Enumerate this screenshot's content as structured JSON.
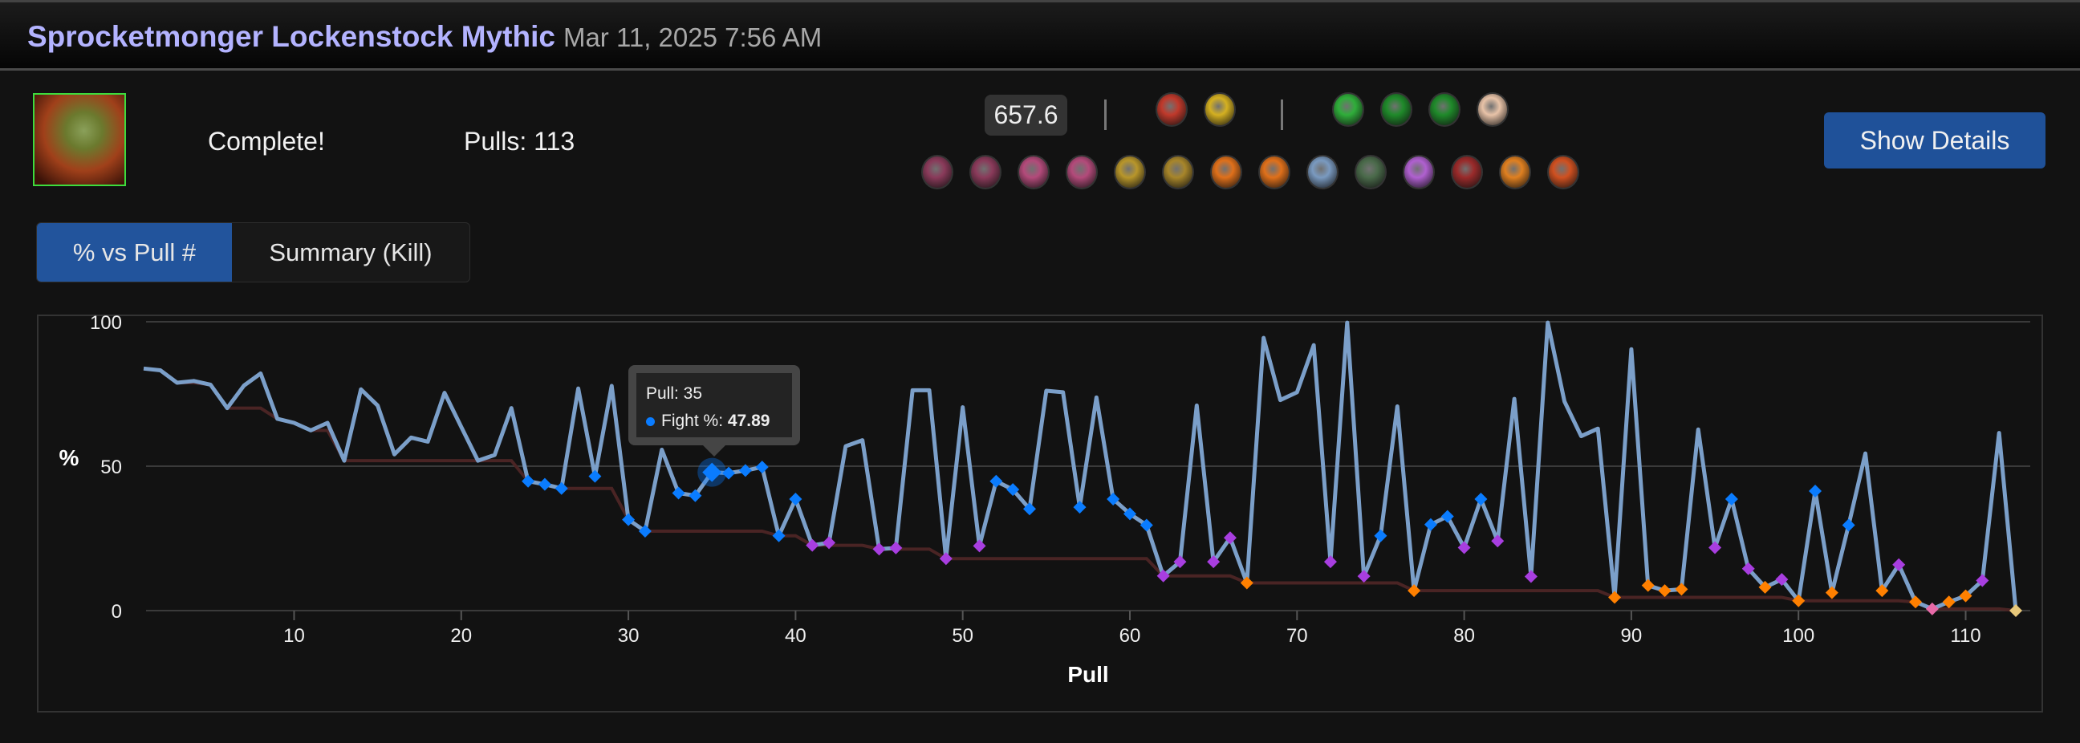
{
  "header": {
    "title": "Sprocketmonger Lockenstock Mythic",
    "date": "Mar 11, 2025 7:56 AM"
  },
  "summary": {
    "status": "Complete!",
    "pulls": "Pulls: 113",
    "score": "657.6"
  },
  "comp_icons_top_left": [
    {
      "name": "tank-icon-1",
      "color": "#c0392b"
    },
    {
      "name": "tank-icon-2",
      "color": "#d4b021"
    }
  ],
  "comp_icons_top_right": [
    {
      "name": "healer-icon-1",
      "color": "#2fae3a"
    },
    {
      "name": "healer-icon-2",
      "color": "#1f8a2a"
    },
    {
      "name": "healer-icon-3",
      "color": "#1f8a2a"
    },
    {
      "name": "healer-icon-4",
      "color": "#e8c3a8"
    }
  ],
  "comp_icons_dps": [
    {
      "name": "dps-icon-1",
      "color": "#8a3a5a"
    },
    {
      "name": "dps-icon-2",
      "color": "#8a3a5a"
    },
    {
      "name": "dps-icon-3",
      "color": "#b34a7a"
    },
    {
      "name": "dps-icon-4",
      "color": "#b34a7a"
    },
    {
      "name": "dps-icon-5",
      "color": "#b8962a"
    },
    {
      "name": "dps-icon-6",
      "color": "#a8862a"
    },
    {
      "name": "dps-icon-7",
      "color": "#e0701a"
    },
    {
      "name": "dps-icon-8",
      "color": "#e0701a"
    },
    {
      "name": "dps-icon-9",
      "color": "#7a9ac0"
    },
    {
      "name": "dps-icon-10",
      "color": "#4a6a4a"
    },
    {
      "name": "dps-icon-11",
      "color": "#b060d0"
    },
    {
      "name": "dps-icon-12",
      "color": "#9a2a2a"
    },
    {
      "name": "dps-icon-13",
      "color": "#e08020"
    },
    {
      "name": "dps-icon-14",
      "color": "#d05020"
    }
  ],
  "show_details_label": "Show Details",
  "tabs": [
    {
      "label": "% vs Pull #",
      "active": true
    },
    {
      "label": "Summary (Kill)",
      "active": false
    }
  ],
  "tooltip": {
    "pull": "Pull: 35",
    "label": "Fight %: ",
    "value": "47.89"
  },
  "chart_data": {
    "type": "line",
    "xlabel": "Pull",
    "ylabel": "%",
    "xlim": [
      1,
      113
    ],
    "ylim": [
      0,
      100
    ],
    "xticks": [
      10,
      20,
      30,
      40,
      50,
      60,
      70,
      80,
      90,
      100,
      110
    ],
    "yticks": [
      0,
      50,
      100
    ],
    "grid": true,
    "line_color": "#7b9fc9",
    "best_line_color": "#4a2424",
    "phase_colors": {
      "blue": "#0a7cff",
      "purple": "#a83ee0",
      "orange": "#ff8000",
      "pink": "#e86aa8",
      "gold": "#e8c87a"
    },
    "series": [
      {
        "name": "Fight %",
        "x_start": 1,
        "values": [
          83.8,
          83.2,
          78.9,
          79.5,
          78.2,
          70.1,
          77.9,
          82.1,
          66.4,
          65,
          62.4,
          65,
          51.9,
          76.6,
          71,
          54.1,
          59.9,
          58.5,
          75.4,
          63.6,
          51.9,
          53.9,
          70.1,
          44.8,
          43.7,
          42.3,
          76.9,
          46.5,
          77.8,
          31.5,
          27.5,
          55.7,
          40.7,
          39.8,
          47.89,
          47.6,
          48.5,
          49.7,
          25.9,
          38.6,
          22.6,
          23.5,
          56.9,
          59,
          21.3,
          21.7,
          76.3,
          76.3,
          18,
          70.4,
          22.4,
          44.8,
          41.9,
          35.2,
          76.1,
          75.6,
          35.8,
          73.8,
          38.6,
          33.5,
          29.6,
          12,
          16.9,
          71,
          16.9,
          25.2,
          9.6,
          94.4,
          72.9,
          75.6,
          91.9,
          16.9,
          99.7,
          11.9,
          25.9,
          70.7,
          6.9,
          29.8,
          32.6,
          21.8,
          38.6,
          24.1,
          73.3,
          11.8,
          99.7,
          72.4,
          60.4,
          63,
          4.6,
          90.5,
          8.7,
          6.9,
          7.4,
          62.7,
          21.8,
          38.6,
          14.5,
          8.1,
          10.8,
          3.4,
          41.4,
          6.2,
          29.6,
          54.4,
          6.9,
          15.9,
          3,
          0.6,
          3,
          5.1,
          10.4,
          61.5,
          0
        ]
      }
    ],
    "phase_markers": {
      "blue": [
        24,
        25,
        26,
        28,
        30,
        31,
        33,
        34,
        35,
        36,
        37,
        38,
        39,
        40,
        52,
        53,
        54,
        57,
        59,
        60,
        61,
        75,
        78,
        79,
        81,
        96,
        101,
        103
      ],
      "purple": [
        41,
        42,
        45,
        46,
        49,
        51,
        62,
        63,
        65,
        66,
        72,
        74,
        80,
        82,
        84,
        95,
        97,
        99,
        106,
        111
      ],
      "orange": [
        67,
        77,
        89,
        91,
        92,
        93,
        98,
        100,
        102,
        105,
        107,
        109,
        110
      ],
      "pink": [
        108
      ],
      "gold": [
        113
      ]
    },
    "highlighted_pull": 35
  }
}
